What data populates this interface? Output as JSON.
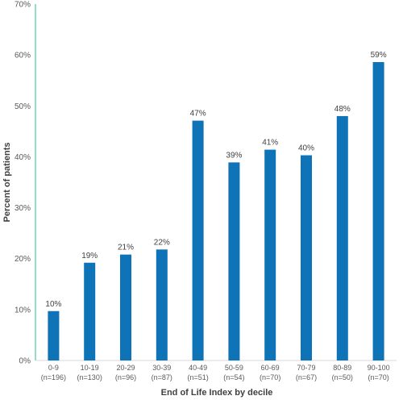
{
  "chart_data": {
    "type": "bar",
    "xlabel": "End of Life Index by decile",
    "ylabel": "Percent of patients",
    "ylim": [
      0,
      70
    ],
    "yticks": [
      "0%",
      "10%",
      "20%",
      "30%",
      "40%",
      "50%",
      "60%",
      "70%"
    ],
    "categories": [
      {
        "range": "0-9",
        "n": "(n=196)"
      },
      {
        "range": "10-19",
        "n": "(n=130)"
      },
      {
        "range": "20-29",
        "n": "(n=96)"
      },
      {
        "range": "30-39",
        "n": "(n=87)"
      },
      {
        "range": "40-49",
        "n": "(n=51)"
      },
      {
        "range": "50-59",
        "n": "(n=54)"
      },
      {
        "range": "60-69",
        "n": "(n=70)"
      },
      {
        "range": "70-79",
        "n": "(n=67)"
      },
      {
        "range": "80-89",
        "n": "(n=50)"
      },
      {
        "range": "90-100",
        "n": "(n=70)"
      }
    ],
    "values": [
      9.7,
      19.2,
      20.8,
      21.8,
      47.1,
      38.9,
      41.4,
      40.3,
      48.0,
      58.6
    ],
    "data_labels": [
      "10%",
      "19%",
      "21%",
      "22%",
      "47%",
      "39%",
      "41%",
      "40%",
      "48%",
      "59%"
    ],
    "bar_color": "#0f73b8",
    "left_axis_color": "#2dba8f",
    "grid": false,
    "legend": "none"
  }
}
